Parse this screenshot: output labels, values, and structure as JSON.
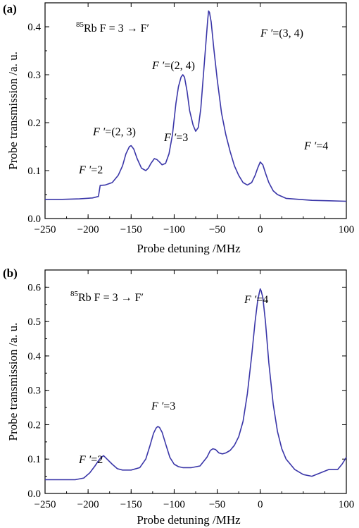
{
  "chart_data": [
    {
      "type": "line",
      "panel_label": "(a)",
      "header": {
        "iso_mass": "85",
        "text": "Rb F = 3 → F′"
      },
      "xlabel": "Probe detuning /MHz",
      "ylabel": "Probe transmission /a. u.",
      "xlim": [
        -250,
        100
      ],
      "ylim": [
        0.0,
        0.45
      ],
      "xticks": [
        -250,
        -200,
        -150,
        -100,
        -50,
        0,
        100
      ],
      "xtick_labels": [
        "−250",
        "−200",
        "−150",
        "−100",
        "−50",
        "0",
        "100"
      ],
      "yticks": [
        0.0,
        0.1,
        0.2,
        0.3,
        0.4
      ],
      "ytick_labels": [
        "0.0",
        "0.1",
        "0.2",
        "0.3",
        "0.4"
      ],
      "color": "#3a36a8",
      "series": [
        {
          "x": [
            -250,
            -230,
            -210,
            -195,
            -188,
            -186,
            -180,
            -172,
            -165,
            -160,
            -156,
            -152,
            -150,
            -147,
            -143,
            -138,
            -133,
            -130,
            -127,
            -123,
            -120,
            -117,
            -114,
            -110,
            -106,
            -102,
            -98,
            -95,
            -92,
            -90,
            -88,
            -85,
            -82,
            -78,
            -75,
            -72,
            -69,
            -66,
            -63,
            -61,
            -60,
            -59,
            -57,
            -54,
            -50,
            -45,
            -40,
            -35,
            -30,
            -25,
            -20,
            -15,
            -10,
            -6,
            -3,
            0,
            3,
            6,
            10,
            15,
            20,
            30,
            45,
            60,
            80,
            100
          ],
          "y": [
            0.04,
            0.04,
            0.041,
            0.043,
            0.046,
            0.069,
            0.07,
            0.075,
            0.09,
            0.11,
            0.135,
            0.15,
            0.152,
            0.145,
            0.125,
            0.105,
            0.1,
            0.105,
            0.115,
            0.125,
            0.123,
            0.118,
            0.112,
            0.115,
            0.135,
            0.175,
            0.24,
            0.275,
            0.295,
            0.3,
            0.295,
            0.265,
            0.225,
            0.195,
            0.182,
            0.19,
            0.23,
            0.3,
            0.37,
            0.415,
            0.433,
            0.43,
            0.41,
            0.355,
            0.29,
            0.22,
            0.175,
            0.14,
            0.11,
            0.09,
            0.075,
            0.07,
            0.075,
            0.09,
            0.105,
            0.118,
            0.112,
            0.095,
            0.075,
            0.058,
            0.05,
            0.042,
            0.04,
            0.038,
            0.037,
            0.036
          ]
        }
      ],
      "annotations": [
        {
          "italic": "F ′",
          "rest": "=2"
        },
        {
          "italic": "F ′",
          "rest": "=(2, 3)"
        },
        {
          "italic": "F ′",
          "rest": "=3"
        },
        {
          "italic": "F ′",
          "rest": "=(2, 4)"
        },
        {
          "italic": "F ′",
          "rest": "=(3, 4)"
        },
        {
          "italic": "F ′",
          "rest": "=4"
        }
      ]
    },
    {
      "type": "line",
      "panel_label": "(b)",
      "header": {
        "iso_mass": "85",
        "text": "Rb F = 3 → F′"
      },
      "xlabel": "Probe detuning /MHz",
      "ylabel": "Probe transmission /a. u.",
      "xlim": [
        -250,
        100
      ],
      "ylim": [
        0.0,
        0.65
      ],
      "xticks": [
        -250,
        -200,
        -150,
        -100,
        -50,
        0,
        100
      ],
      "xtick_labels": [
        "−250",
        "−200",
        "−150",
        "−100",
        "−50",
        "0",
        "100"
      ],
      "yticks": [
        0.0,
        0.1,
        0.2,
        0.3,
        0.4,
        0.5,
        0.6
      ],
      "ytick_labels": [
        "0.0",
        "0.1",
        "0.2",
        "0.3",
        "0.4",
        "0.5",
        "0.6"
      ],
      "color": "#3a36a8",
      "series": [
        {
          "x": [
            -250,
            -230,
            -215,
            -205,
            -198,
            -192,
            -188,
            -185,
            -182,
            -178,
            -172,
            -166,
            -160,
            -150,
            -140,
            -133,
            -128,
            -124,
            -121,
            -119,
            -117,
            -114,
            -110,
            -105,
            -100,
            -95,
            -90,
            -80,
            -70,
            -62,
            -58,
            -55,
            -52,
            -48,
            -44,
            -40,
            -35,
            -30,
            -25,
            -20,
            -15,
            -10,
            -6,
            -3,
            -1,
            0,
            1,
            3,
            6,
            10,
            15,
            20,
            25,
            30,
            40,
            50,
            60,
            70,
            80,
            90,
            95,
            100
          ],
          "y": [
            0.04,
            0.04,
            0.04,
            0.045,
            0.06,
            0.08,
            0.095,
            0.105,
            0.11,
            0.1,
            0.085,
            0.072,
            0.068,
            0.068,
            0.075,
            0.1,
            0.14,
            0.175,
            0.19,
            0.195,
            0.192,
            0.178,
            0.145,
            0.105,
            0.085,
            0.078,
            0.075,
            0.075,
            0.08,
            0.105,
            0.125,
            0.13,
            0.128,
            0.118,
            0.115,
            0.118,
            0.125,
            0.14,
            0.165,
            0.21,
            0.29,
            0.4,
            0.5,
            0.56,
            0.585,
            0.595,
            0.59,
            0.57,
            0.5,
            0.38,
            0.26,
            0.18,
            0.13,
            0.1,
            0.07,
            0.055,
            0.05,
            0.06,
            0.07,
            0.07,
            0.085,
            0.105
          ]
        }
      ],
      "annotations": [
        {
          "italic": "F ′",
          "rest": "=2"
        },
        {
          "italic": "F ′",
          "rest": "=3"
        },
        {
          "italic": "F ′",
          "rest": "=4"
        }
      ]
    }
  ]
}
